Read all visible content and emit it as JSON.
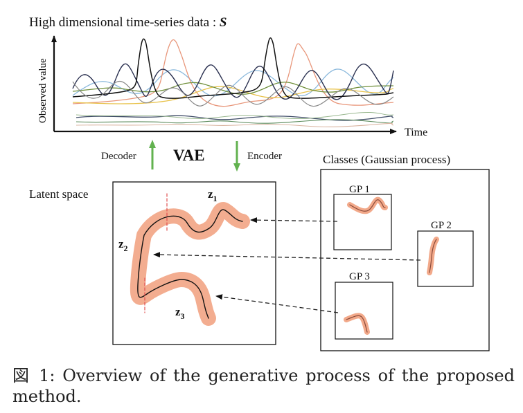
{
  "top": {
    "title": "High dimensional time-series data : ",
    "title_var": "S",
    "ylabel": "Observed value",
    "xlabel": "Time"
  },
  "vae": {
    "decoder": "Decoder",
    "label": "VAE",
    "encoder": "Encoder"
  },
  "latent": {
    "title": "Latent space",
    "z1": "z",
    "z1_sub": "1",
    "z2": "z",
    "z2_sub": "2",
    "z3": "z",
    "z3_sub": "3"
  },
  "classes": {
    "title": "Classes (Gaussian process)",
    "gp1": "GP 1",
    "gp2": "GP 2",
    "gp3": "GP 3"
  },
  "caption": "図 1: Overview of the generative process of the proposed method.",
  "colors": {
    "band": "#f2a98a",
    "arrow_green": "#62b24f",
    "dashed_red": "#e05050"
  }
}
